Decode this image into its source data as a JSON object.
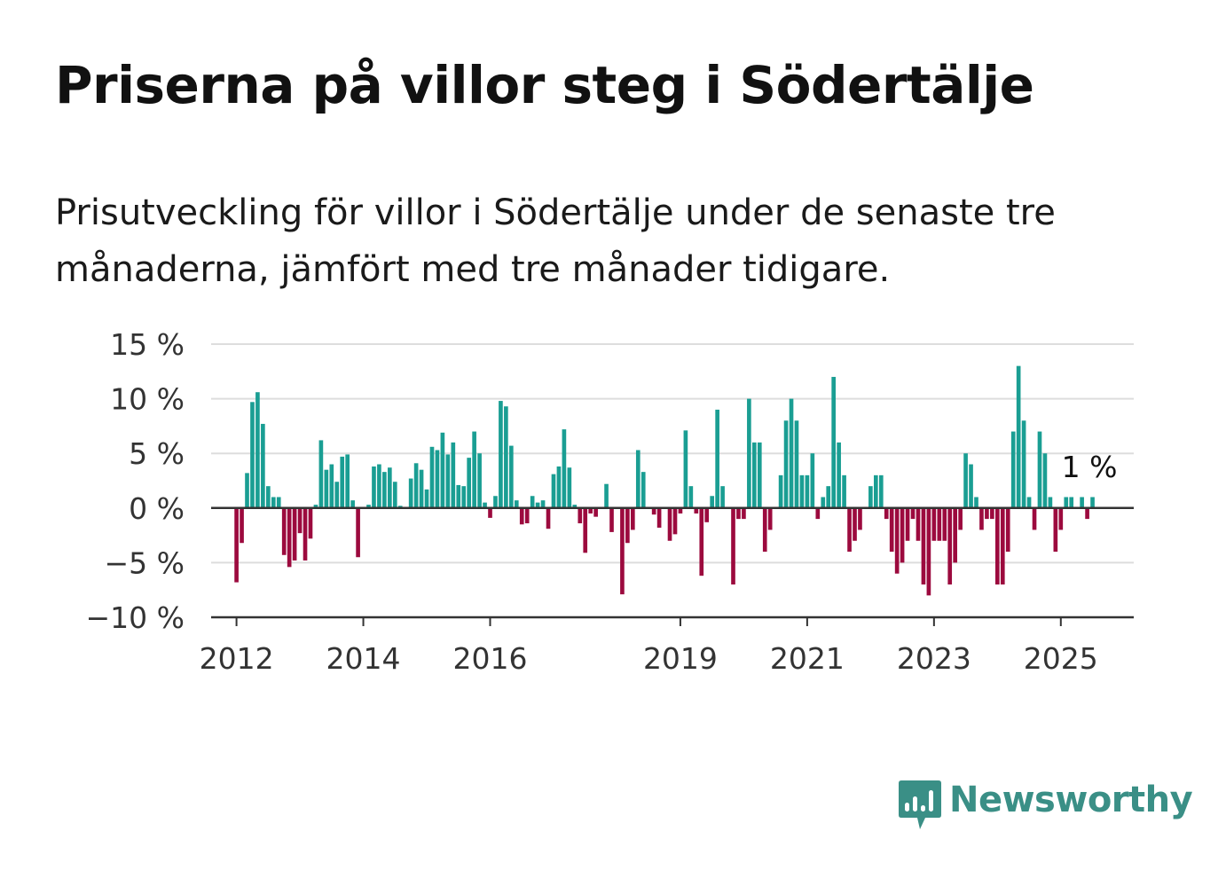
{
  "title": "Priserna på villor steg i Södertälje",
  "subtitle": "Prisutveckling för villor i Södertälje under de senaste tre månaderna, jämfört med tre månader tidigare.",
  "brand": {
    "name": "Newsworthy",
    "icon": "newsworthy-logo-icon",
    "color": "#3a8f86"
  },
  "colors": {
    "positive": "#1a9e93",
    "negative": "#9c0a3e",
    "grid": "#dddddd",
    "axis": "#333333"
  },
  "chart_data": {
    "type": "bar",
    "xlim": [
      2011.6,
      2026.15
    ],
    "ylim": [
      -10,
      15
    ],
    "yticks": [
      15,
      10,
      5,
      0,
      -5,
      -10
    ],
    "ytick_labels": [
      "15 %",
      "10 %",
      "5 %",
      "0 %",
      "−5 %",
      "−10 %"
    ],
    "xticks": [
      2012,
      2014,
      2016,
      2019,
      2021,
      2023,
      2025
    ],
    "xtick_labels": [
      "2012",
      "2014",
      "2016",
      "2019",
      "2021",
      "2023",
      "2025"
    ],
    "grid": true,
    "end_label": "1 %",
    "series": [
      {
        "start": "2012-01",
        "values": [
          -6.8,
          -3.2,
          3.2,
          9.7,
          10.6,
          7.7,
          2.0,
          1.0,
          1.0,
          -4.3,
          -5.4,
          -4.8,
          -2.3,
          -4.8,
          -2.8,
          0.3,
          6.2,
          3.5,
          4.0,
          2.4,
          4.7,
          4.9,
          0.7,
          -4.5,
          0.0,
          0.3,
          3.8,
          4.0,
          3.3,
          3.7,
          2.4,
          0.2,
          0.0,
          2.7,
          4.1,
          3.5,
          1.7,
          5.6,
          5.3,
          6.9,
          4.9,
          6.0,
          2.1,
          2.0,
          4.6,
          7.0,
          5.0,
          0.5,
          -0.9,
          1.1,
          9.8,
          9.3,
          5.7,
          0.7,
          -1.5,
          -1.4,
          1.1,
          0.5,
          0.7,
          -1.9,
          3.1,
          3.8,
          7.2,
          3.7,
          0.3,
          -1.4,
          -4.1,
          -0.5,
          -0.8,
          0.0,
          2.2,
          -2.2,
          0.0,
          -7.9,
          -3.2,
          -2.0,
          5.3,
          3.3,
          0.1,
          -0.6,
          -1.8,
          0.0,
          -3.0,
          -2.4,
          -0.5,
          7.1,
          2.0,
          -0.5,
          -6.2,
          -1.3,
          1.1,
          9.0,
          2.0,
          0.0,
          -7.0,
          -1.0,
          -1.0,
          10.0,
          6.0,
          6.0,
          -4.0,
          -2.0,
          0.0,
          3.0,
          8.0,
          10.0,
          8.0,
          3.0,
          3.0,
          5.0,
          -1.0,
          1.0,
          2.0,
          12.0,
          6.0,
          3.0,
          -4.0,
          -3.0,
          -2.0,
          0.0,
          2.0,
          3.0,
          3.0,
          -1.0,
          -4.0,
          -6.0,
          -5.0,
          -3.0,
          -1.0,
          -3.0,
          -7.0,
          -8.0,
          -3.0,
          -3.0,
          -3.0,
          -7.0,
          -5.0,
          -2.0,
          5.0,
          4.0,
          1.0,
          -2.0,
          -1.0,
          -1.0,
          -7.0,
          -7.0,
          -4.0,
          7.0,
          13.0,
          8.0,
          1.0,
          -2.0,
          7.0,
          5.0,
          1.0,
          -4.0,
          -2.0,
          1.0,
          1.0,
          0.0,
          1.0,
          -1.0,
          1.0
        ]
      }
    ]
  }
}
